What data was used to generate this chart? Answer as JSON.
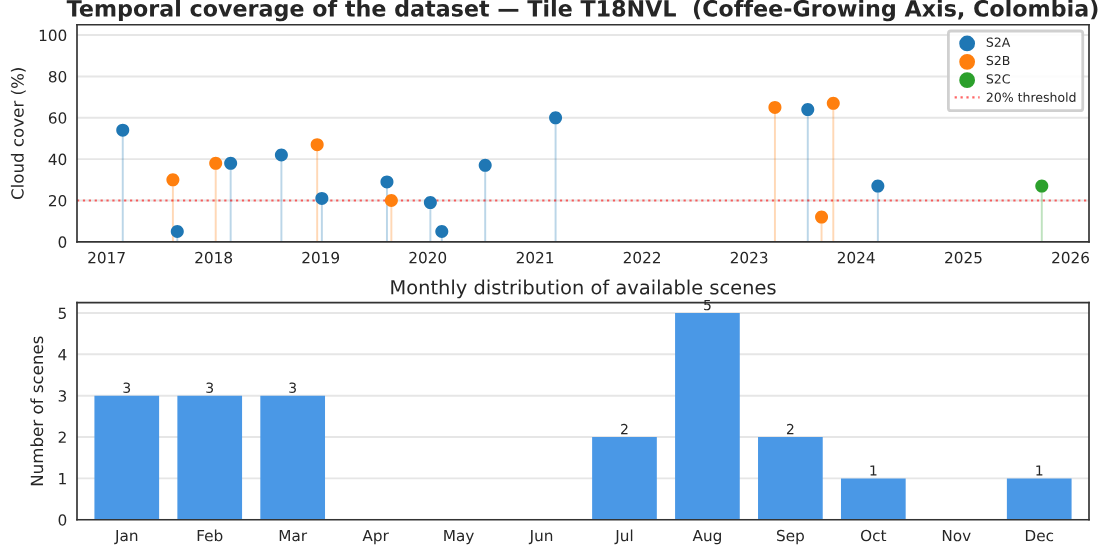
{
  "chart_data": [
    {
      "type": "lollipop",
      "title": "Temporal coverage of the dataset — Tile T18NVL  (Coffee-Growing Axis, Colombia)",
      "ylabel": "Cloud cover (%)",
      "series": [
        {
          "name": "S2A",
          "color": "#1f77b4",
          "x": [
            "2017-02-25",
            "2017-08-30",
            "2018-02-28",
            "2018-08-20",
            "2019-01-05",
            "2019-08-15",
            "2020-01-10",
            "2020-02-18",
            "2020-07-15",
            "2021-03-12",
            "2023-07-20",
            "2024-03-15"
          ],
          "values": [
            54,
            5,
            38,
            42,
            21,
            29,
            19,
            5,
            37,
            60,
            64,
            27
          ]
        },
        {
          "name": "S2B",
          "color": "#ff7f0e",
          "x": [
            "2017-08-15",
            "2018-01-08",
            "2018-12-20",
            "2019-08-30",
            "2023-03-30",
            "2023-09-05",
            "2023-10-15"
          ],
          "values": [
            30,
            38,
            47,
            20,
            65,
            12,
            67
          ]
        },
        {
          "name": "S2C",
          "color": "#2ca02c",
          "x": [
            "2025-09-25"
          ],
          "values": [
            27
          ]
        }
      ],
      "ref_lines": [
        {
          "axis": "y",
          "value": 20,
          "label": "20% threshold",
          "color": "#ff0000",
          "line_style": "dotted"
        }
      ],
      "xlim": [
        "2016-09-22",
        "2026-03-05"
      ],
      "xticks": [
        {
          "value": "2017-01-01",
          "label": "2017"
        },
        {
          "value": "2018-01-01",
          "label": "2018"
        },
        {
          "value": "2019-01-01",
          "label": "2019"
        },
        {
          "value": "2020-01-01",
          "label": "2020"
        },
        {
          "value": "2021-01-01",
          "label": "2021"
        },
        {
          "value": "2022-01-01",
          "label": "2022"
        },
        {
          "value": "2023-01-01",
          "label": "2023"
        },
        {
          "value": "2024-01-01",
          "label": "2024"
        },
        {
          "value": "2025-01-01",
          "label": "2025"
        },
        {
          "value": "2026-01-01",
          "label": "2026"
        }
      ],
      "ylim": [
        0,
        105
      ],
      "yticks": [
        0,
        20,
        40,
        60,
        80,
        100
      ],
      "grid": "y",
      "legend": "top right",
      "marker": "circle"
    },
    {
      "type": "bar",
      "title": "Monthly distribution of available scenes",
      "ylabel": "Number of scenes",
      "categories": [
        "Jan",
        "Feb",
        "Mar",
        "Apr",
        "May",
        "Jun",
        "Jul",
        "Aug",
        "Sep",
        "Oct",
        "Nov",
        "Dec"
      ],
      "values": [
        3,
        3,
        3,
        0,
        0,
        0,
        2,
        5,
        2,
        1,
        0,
        1
      ],
      "color": "#4a98e6",
      "value_labels": [
        "3",
        "3",
        "3",
        null,
        null,
        null,
        "2",
        "5",
        "2",
        "1",
        null,
        "1"
      ],
      "ylim": [
        0,
        5.25
      ],
      "yticks": [
        0,
        1,
        2,
        3,
        4,
        5
      ],
      "grid": "y"
    }
  ]
}
